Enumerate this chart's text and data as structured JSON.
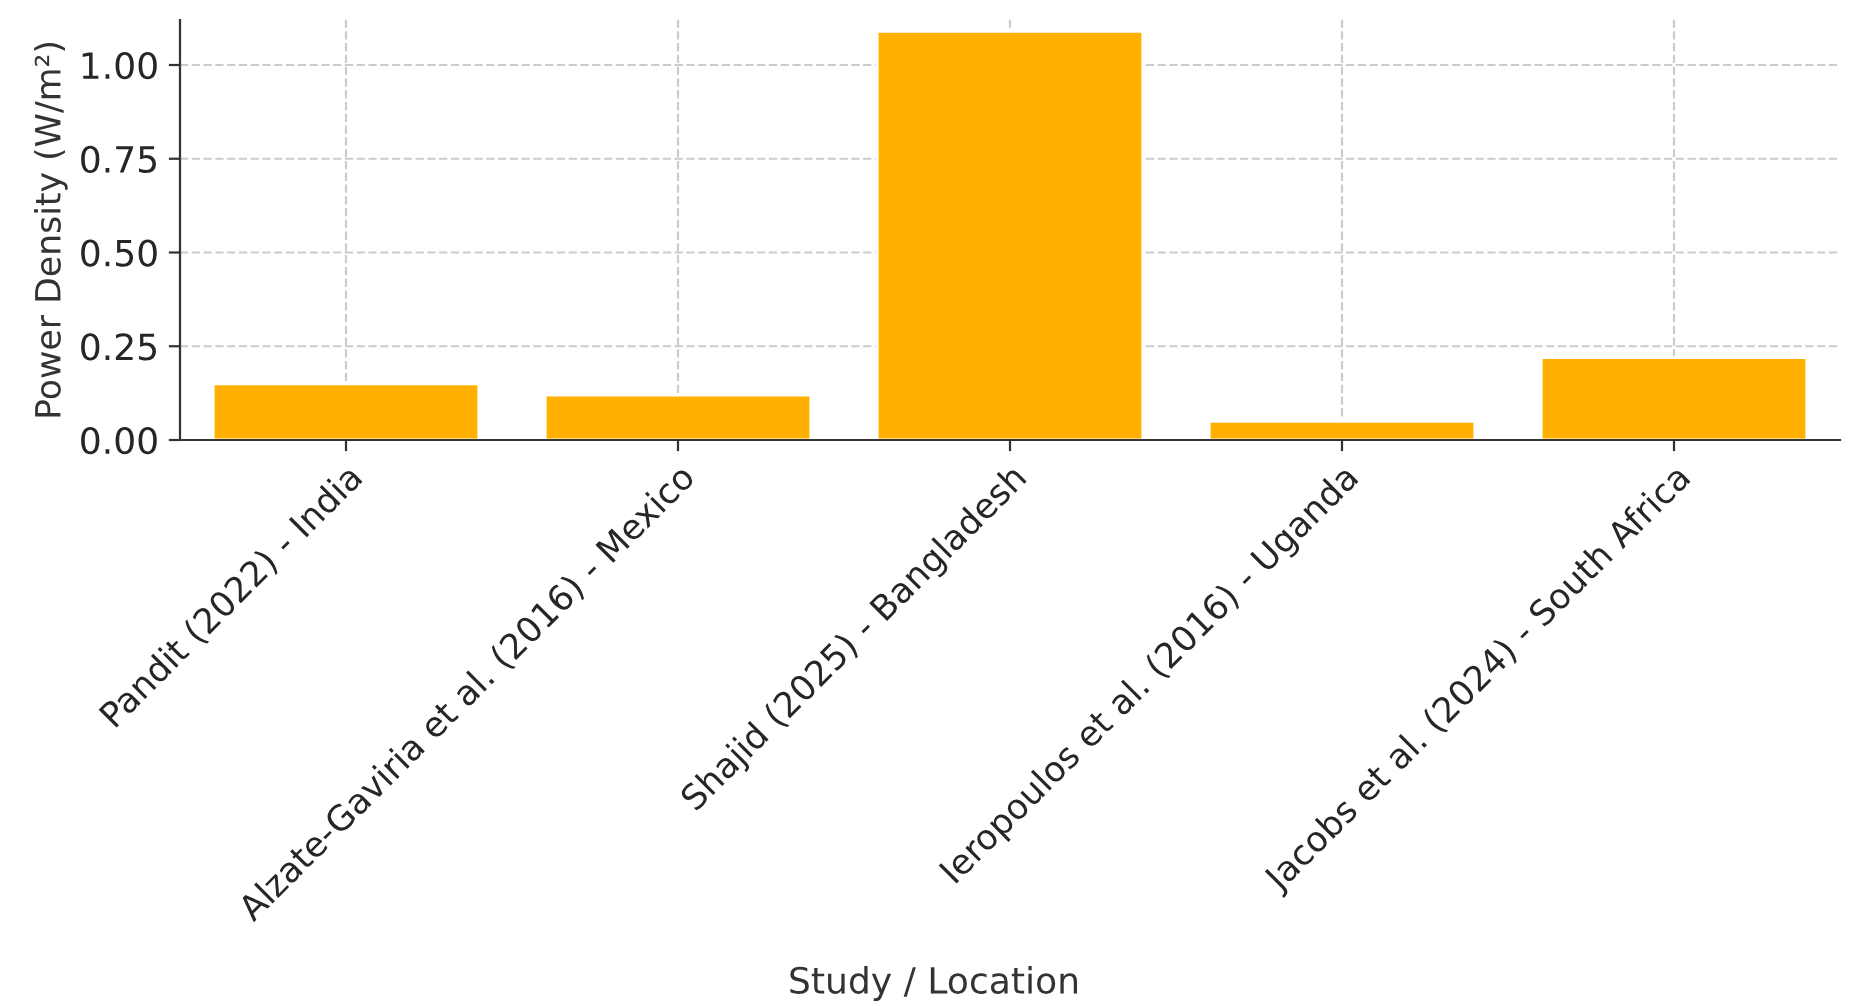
{
  "chart_data": {
    "type": "bar",
    "xlabel": "Study / Location",
    "ylabel": "Power Density (W/m²)",
    "categories": [
      "Pandit (2022) - India",
      "Alzate-Gaviria et al. (2016) - Mexico",
      "Shajid (2025) - Bangladesh",
      "Ieropoulos et al. (2016) - Uganda",
      "Jacobs et al. (2024) - South Africa"
    ],
    "values": [
      0.15,
      0.12,
      1.09,
      0.05,
      0.22
    ],
    "color": "#ffb000",
    "ylim": [
      0,
      1.12
    ],
    "yticks": [
      {
        "value": 0,
        "label": "0.00"
      },
      {
        "value": 0.25,
        "label": "0.25"
      },
      {
        "value": 0.5,
        "label": "0.50"
      },
      {
        "value": 0.75,
        "label": "0.75"
      },
      {
        "value": 1.0,
        "label": "1.00"
      }
    ],
    "grid": true
  }
}
